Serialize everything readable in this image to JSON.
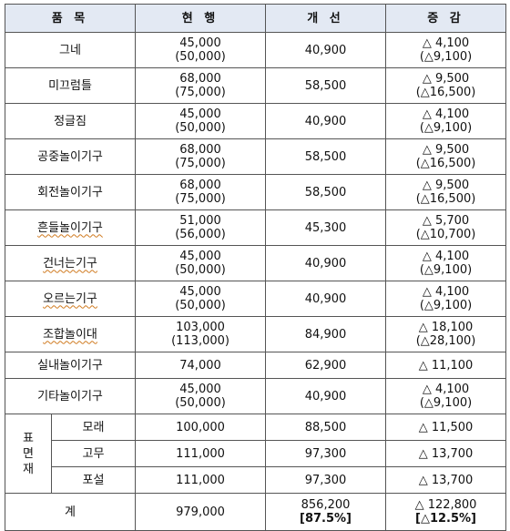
{
  "headers": [
    "품 목",
    "현 행",
    "개 선",
    "증 감"
  ],
  "surface_group_label": "표면재",
  "rows": [
    {
      "item": "그네",
      "current": [
        "45,000",
        "(50,000)"
      ],
      "improved": "40,900",
      "change": [
        "△ 4,100",
        "(△9,100)"
      ],
      "squiggle": false
    },
    {
      "item": "미끄럼틀",
      "current": [
        "68,000",
        "(75,000)"
      ],
      "improved": "58,500",
      "change": [
        "△ 9,500",
        "(△16,500)"
      ],
      "squiggle": false
    },
    {
      "item": "정글짐",
      "current": [
        "45,000",
        "(50,000)"
      ],
      "improved": "40,900",
      "change": [
        "△ 4,100",
        "(△9,100)"
      ],
      "squiggle": false
    },
    {
      "item": "공중놀이기구",
      "current": [
        "68,000",
        "(75,000)"
      ],
      "improved": "58,500",
      "change": [
        "△ 9,500",
        "(△16,500)"
      ],
      "squiggle": false
    },
    {
      "item": "회전놀이기구",
      "current": [
        "68,000",
        "(75,000)"
      ],
      "improved": "58,500",
      "change": [
        "△ 9,500",
        "(△16,500)"
      ],
      "squiggle": false
    },
    {
      "item": "흔들놀이기구",
      "current": [
        "51,000",
        "(56,000)"
      ],
      "improved": "45,300",
      "change": [
        "△ 5,700",
        "(△10,700)"
      ],
      "squiggle": true
    },
    {
      "item": "건너는기구",
      "current": [
        "45,000",
        "(50,000)"
      ],
      "improved": "40,900",
      "change": [
        "△ 4,100",
        "(△9,100)"
      ],
      "squiggle": true
    },
    {
      "item": "오르는기구",
      "current": [
        "45,000",
        "(50,000)"
      ],
      "improved": "40,900",
      "change": [
        "△ 4,100",
        "(△9,100)"
      ],
      "squiggle": true
    },
    {
      "item": "조합놀이대",
      "current": [
        "103,000",
        "(113,000)"
      ],
      "improved": "84,900",
      "change": [
        "△ 18,100",
        "(△28,100)"
      ],
      "squiggle": true
    },
    {
      "item": "실내놀이기구",
      "current": [
        "74,000"
      ],
      "improved": "62,900",
      "change": [
        "△ 11,100"
      ],
      "squiggle": false
    },
    {
      "item": "기타놀이기구",
      "current": [
        "45,000",
        "(50,000)"
      ],
      "improved": "40,900",
      "change": [
        "△ 4,100",
        "(△9,100)"
      ],
      "squiggle": false
    }
  ],
  "surface_rows": [
    {
      "item": "모래",
      "current": "100,000",
      "improved": "88,500",
      "change": "△ 11,500"
    },
    {
      "item": "고무",
      "current": "111,000",
      "improved": "97,300",
      "change": "△ 13,700"
    },
    {
      "item": "포설",
      "current": "111,000",
      "improved": "97,300",
      "change": "△ 13,700"
    }
  ],
  "total": {
    "label": "계",
    "current": "979,000",
    "improved": [
      "856,200",
      "[87.5%]"
    ],
    "change": [
      "△ 122,800",
      "[△12.5%]"
    ]
  }
}
